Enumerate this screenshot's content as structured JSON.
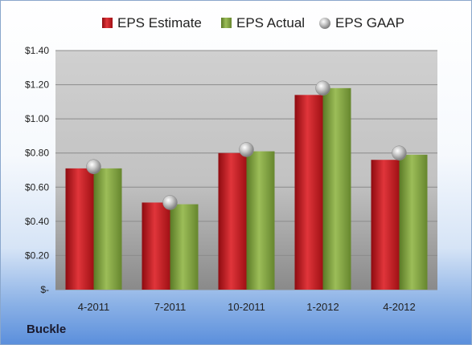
{
  "chart_data": {
    "type": "bar",
    "categories": [
      "4-2011",
      "7-2011",
      "10-2011",
      "1-2012",
      "4-2012"
    ],
    "series": [
      {
        "name": "EPS Estimate",
        "values": [
          0.71,
          0.51,
          0.8,
          1.14,
          0.76
        ],
        "color": "#c0161c"
      },
      {
        "name": "EPS Actual",
        "values": [
          0.71,
          0.5,
          0.81,
          1.18,
          0.79
        ],
        "color": "#7a9c3a"
      },
      {
        "name": "EPS GAAP",
        "values": [
          0.72,
          0.51,
          0.82,
          1.18,
          0.8
        ],
        "color": "#bdbdbd",
        "marker": "sphere"
      }
    ],
    "ylim": [
      0,
      1.4
    ],
    "yticks": [
      {
        "value": 0,
        "label": "$-"
      },
      {
        "value": 0.2,
        "label": "$0.20"
      },
      {
        "value": 0.4,
        "label": "$0.40"
      },
      {
        "value": 0.6,
        "label": "$0.60"
      },
      {
        "value": 0.8,
        "label": "$0.80"
      },
      {
        "value": 1.0,
        "label": "$1.00"
      },
      {
        "value": 1.2,
        "label": "$1.20"
      },
      {
        "value": 1.4,
        "label": "$1.40"
      }
    ],
    "grid": true,
    "legend": "top"
  },
  "caption": "Buckle"
}
